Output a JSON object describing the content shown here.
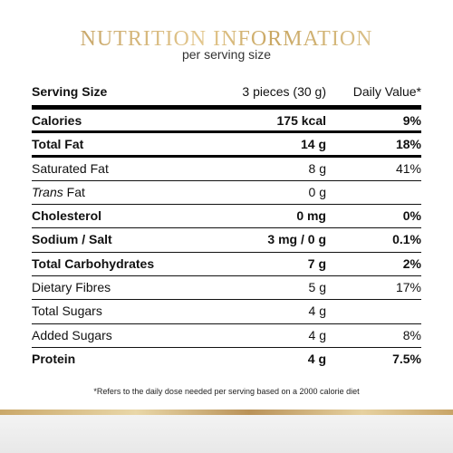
{
  "title": "NUTRITION INFORMATION",
  "subtitle": "per serving size",
  "header": {
    "label": "Serving Size",
    "amount": "3 pieces (30 g)",
    "daily_value": "Daily Value*"
  },
  "rows": [
    {
      "name_prefix": "",
      "name": "Calories",
      "amount": "175 kcal",
      "daily_value": "9%",
      "bold": true
    },
    {
      "name_prefix": "",
      "name": "Total Fat",
      "amount": "14 g",
      "daily_value": "18%",
      "bold": true
    },
    {
      "name_prefix": "",
      "name": "Saturated Fat",
      "amount": "8 g",
      "daily_value": "41%",
      "bold": false
    },
    {
      "name_prefix": "Trans",
      "name": " Fat",
      "amount": "0 g",
      "daily_value": "",
      "bold": false
    },
    {
      "name_prefix": "",
      "name": "Cholesterol",
      "amount": "0 mg",
      "daily_value": "0%",
      "bold": true
    },
    {
      "name_prefix": "",
      "name": "Sodium / Salt",
      "amount": "3 mg / 0 g",
      "daily_value": "0.1%",
      "bold": true
    },
    {
      "name_prefix": "",
      "name": "Total Carbohydrates",
      "amount": "7 g",
      "daily_value": "2%",
      "bold": true
    },
    {
      "name_prefix": "",
      "name": "Dietary Fibres",
      "amount": "5 g",
      "daily_value": "17%",
      "bold": false
    },
    {
      "name_prefix": "",
      "name": "Total Sugars",
      "amount": "4 g",
      "daily_value": "",
      "bold": false
    },
    {
      "name_prefix": "",
      "name": "Added Sugars",
      "amount": "4 g",
      "daily_value": "8%",
      "bold": false
    },
    {
      "name_prefix": "",
      "name": "Protein",
      "amount": "4 g",
      "daily_value": "7.5%",
      "bold": true
    }
  ],
  "footnote": "*Refers to the daily dose needed per serving based on a 2000 calorie diet",
  "colors": {
    "gold": "#c8a96a",
    "rule": "#000000",
    "text": "#111111"
  }
}
